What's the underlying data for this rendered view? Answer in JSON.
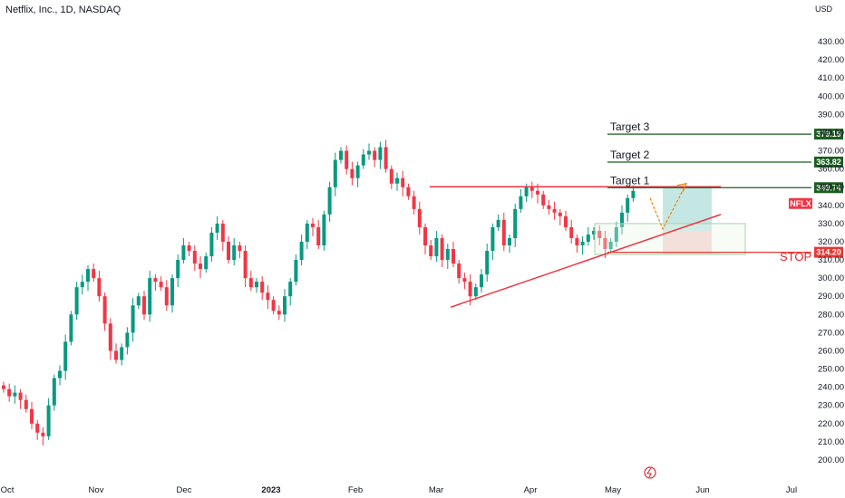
{
  "header": {
    "symbol_line": "Netflix, Inc., 1D, NASDAQ",
    "currency": "USD"
  },
  "colors": {
    "up": "#089981",
    "down": "#f23645",
    "target_line": "#1b5e20",
    "badge_target": "#1b5e20",
    "badge_stop": "#e53935",
    "badge_ticker": "#f23645",
    "trend_line": "#ef3340",
    "arrow": "#f57c00",
    "profit_zone": "#b2dfdb",
    "loss_zone": "#f7c7c7",
    "consolidation_box": "#a5d6a7"
  },
  "chart_data": {
    "type": "candlestick",
    "y_axis": {
      "range": [
        195,
        440
      ],
      "ticks": [
        200,
        210,
        220,
        230,
        240,
        250,
        260,
        270,
        280,
        290,
        300,
        310,
        320,
        330,
        340,
        350,
        360,
        370,
        380,
        390,
        400,
        410,
        420,
        430
      ],
      "tick_labels": [
        "200.00",
        "210.00",
        "220.00",
        "230.00",
        "240.00",
        "250.00",
        "260.00",
        "270.00",
        "280.00",
        "290.00",
        "300.00",
        "310.00",
        "320.00",
        "330.00",
        "340.00",
        "350.00",
        "360.00",
        "370.00",
        "380.00",
        "390.00",
        "400.00",
        "410.00",
        "420.00",
        "430.00"
      ]
    },
    "x_axis": {
      "labels": [
        "Oct",
        "Nov",
        "Dec",
        "2023",
        "Feb",
        "Mar",
        "Apr",
        "May",
        "Jun",
        "Jul"
      ],
      "bold_label": "2023"
    },
    "closes": [
      239,
      235,
      237,
      233,
      228,
      220,
      215,
      213,
      230,
      245,
      249,
      265,
      280,
      295,
      298,
      305,
      300,
      290,
      275,
      260,
      255,
      262,
      270,
      285,
      290,
      280,
      300,
      298,
      295,
      285,
      300,
      310,
      318,
      315,
      308,
      305,
      312,
      325,
      330,
      320,
      310,
      318,
      315,
      300,
      295,
      298,
      292,
      288,
      282,
      280,
      290,
      298,
      310,
      320,
      330,
      328,
      318,
      335,
      350,
      365,
      370,
      360,
      355,
      362,
      368,
      370,
      365,
      372,
      360,
      352,
      355,
      350,
      345,
      338,
      328,
      318,
      312,
      322,
      310,
      316,
      308,
      300,
      298,
      290,
      295,
      302,
      315,
      328,
      332,
      318,
      322,
      338,
      345,
      350,
      348,
      346,
      340,
      338,
      336,
      334,
      328,
      322,
      318,
      320,
      324,
      326,
      322,
      316,
      320,
      328,
      336,
      344,
      348
    ],
    "highlighted_prices": {
      "target_3": {
        "label": "Target 3",
        "value": 379.19,
        "badge": "379.19"
      },
      "target_2": {
        "label": "Target 2",
        "value": 363.82,
        "badge": "363.82"
      },
      "target_1": {
        "label": "Target 1",
        "value": 349.74,
        "badge": "349.74"
      },
      "stop": {
        "label": "STOP",
        "value": 314.2,
        "badge": "314.20"
      },
      "ticker": {
        "label": "NFLX",
        "value": 341
      }
    },
    "resistance_line_value": 349.74,
    "support_trendline": {
      "from_value": 284,
      "to_value": 335
    },
    "grid": false
  },
  "toolbar": {
    "logo_icon": "tradingview-flash-icon"
  }
}
